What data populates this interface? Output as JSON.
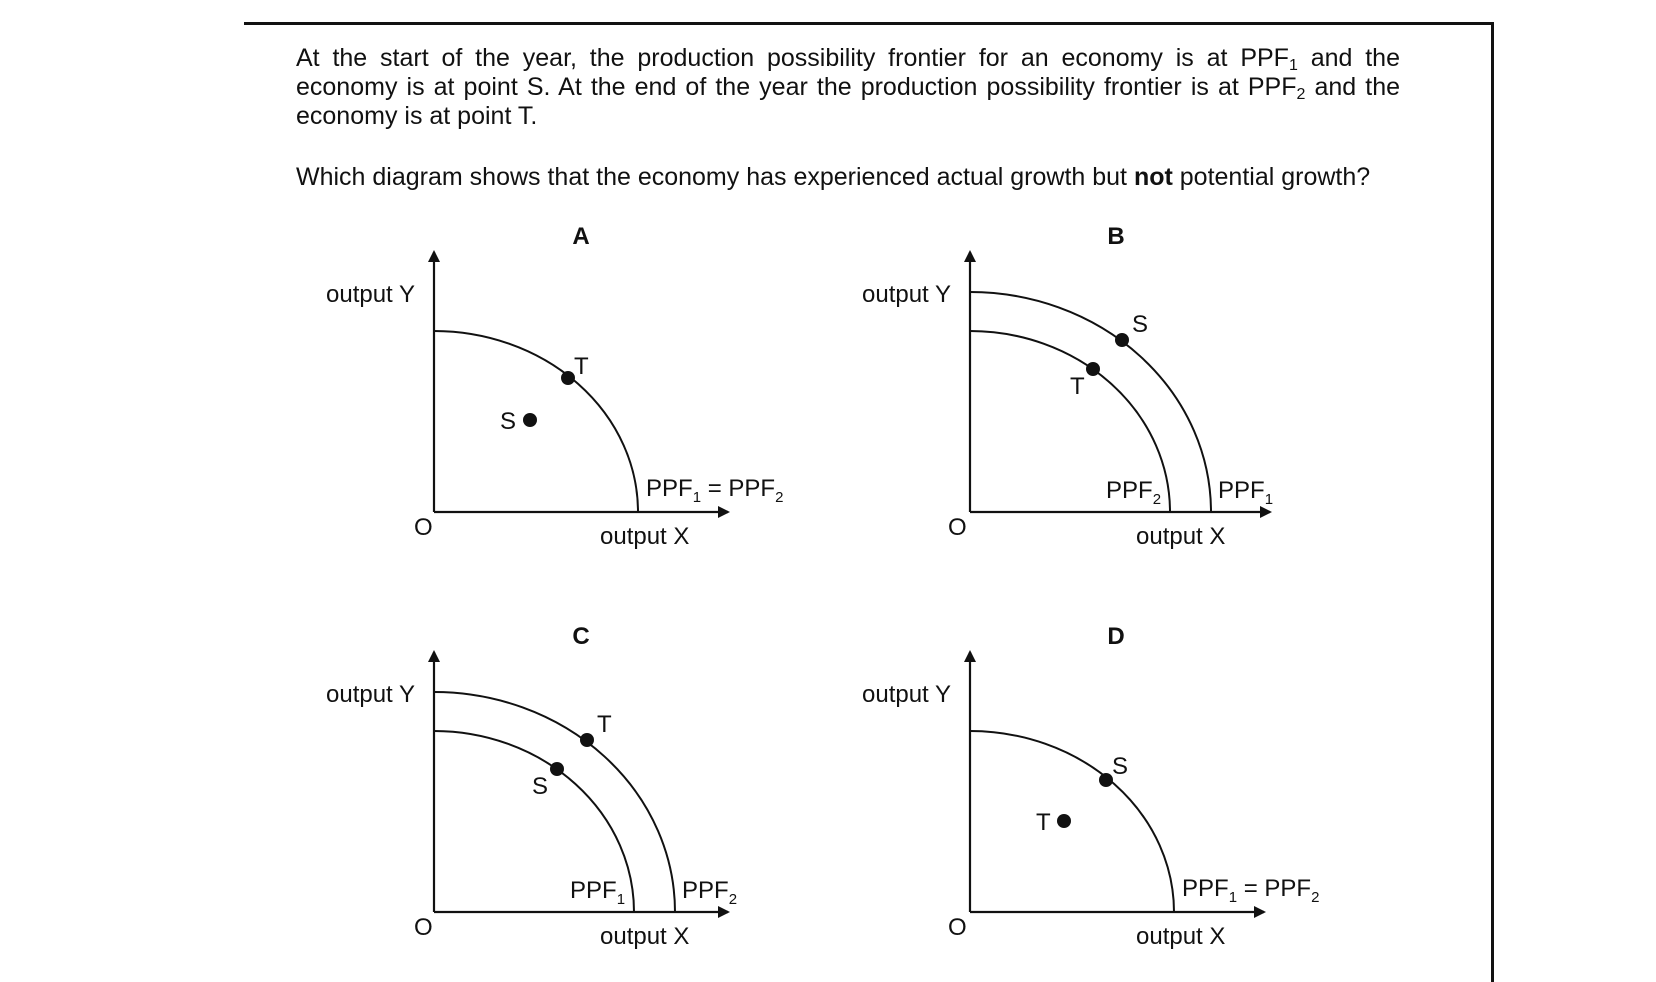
{
  "question": {
    "intro_part1": "At the start of the year, the production possibility frontier for an economy is at PPF",
    "intro_sub1": "1",
    "intro_part2": " and the economy is at point S. At the end of the year the production possibility frontier is at PPF",
    "intro_sub2": "2",
    "intro_part3": " and the economy is at point T.",
    "prompt_before": "Which diagram shows that the economy has experienced actual growth but ",
    "prompt_bold": "not",
    "prompt_after": " potential growth?"
  },
  "axes": {
    "y_label": "output Y",
    "x_label": "output X",
    "origin": "O"
  },
  "diagrams": [
    {
      "letter": "A",
      "curve_labels": [
        {
          "text": "PPF1 = PPF2"
        }
      ],
      "points": [
        {
          "label": "T"
        },
        {
          "label": "S"
        }
      ]
    },
    {
      "letter": "B",
      "curve_labels": [
        {
          "text": "PPF2"
        },
        {
          "text": "PPF1"
        }
      ],
      "points": [
        {
          "label": "S"
        },
        {
          "label": "T"
        }
      ]
    },
    {
      "letter": "C",
      "curve_labels": [
        {
          "text": "PPF1"
        },
        {
          "text": "PPF2"
        }
      ],
      "points": [
        {
          "label": "T"
        },
        {
          "label": "S"
        }
      ]
    },
    {
      "letter": "D",
      "curve_labels": [
        {
          "text": "PPF1 = PPF2"
        }
      ],
      "points": [
        {
          "label": "S"
        },
        {
          "label": "T"
        }
      ]
    }
  ]
}
